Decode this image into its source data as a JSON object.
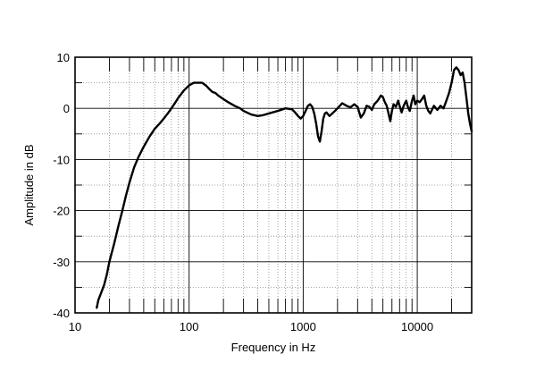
{
  "chart_data": {
    "type": "line",
    "title": "",
    "xlabel": "Frequency in Hz",
    "ylabel": "Amplitude in dB",
    "x_scale": "log",
    "xlim": [
      10,
      30000
    ],
    "ylim": [
      -40,
      10
    ],
    "x_ticks": [
      10,
      100,
      1000,
      10000
    ],
    "x_tick_labels": [
      "10",
      "100",
      "1000",
      "10000"
    ],
    "y_ticks": [
      10,
      0,
      -10,
      -20,
      -30,
      -40
    ],
    "y_tick_labels": [
      "10",
      "0",
      "-10",
      "-20",
      "-30",
      "-40"
    ],
    "grid": true,
    "legend": "none",
    "line_color": "#000000",
    "series": [
      {
        "x": [
          15.5,
          16,
          17,
          18,
          19,
          20,
          22,
          24,
          26,
          28,
          30,
          33,
          36,
          40,
          45,
          50,
          55,
          60,
          65,
          70,
          75,
          80,
          90,
          100,
          110,
          120,
          130,
          140,
          150,
          160,
          170,
          180,
          200,
          220,
          250,
          280,
          300,
          350,
          400,
          450,
          500,
          600,
          700,
          800,
          850,
          900,
          950,
          1000,
          1050,
          1100,
          1150,
          1200,
          1250,
          1300,
          1350,
          1400,
          1450,
          1500,
          1550,
          1600,
          1700,
          1800,
          1900,
          2000,
          2200,
          2400,
          2600,
          2800,
          3000,
          3200,
          3400,
          3600,
          3800,
          4000,
          4200,
          4500,
          4800,
          5000,
          5200,
          5400,
          5600,
          5800,
          6000,
          6200,
          6500,
          6800,
          7000,
          7300,
          7600,
          8000,
          8300,
          8600,
          9000,
          9300,
          9600,
          10000,
          10500,
          11000,
          11500,
          12000,
          12500,
          13000,
          14000,
          15000,
          16000,
          17000,
          18000,
          19000,
          20000,
          21000,
          22000,
          23000,
          24000,
          25000,
          26000,
          27000,
          28000,
          29000,
          30000
        ],
        "y": [
          -39,
          -37.5,
          -36,
          -34.5,
          -32.5,
          -30,
          -26.5,
          -23,
          -20,
          -17,
          -14.5,
          -11.5,
          -9.5,
          -7.5,
          -5.5,
          -4,
          -3,
          -2,
          -1,
          0,
          1,
          2,
          3.5,
          4.5,
          5,
          5,
          5,
          4.5,
          3.8,
          3.2,
          3,
          2.5,
          1.8,
          1.2,
          0.5,
          0,
          -0.5,
          -1.2,
          -1.5,
          -1.3,
          -1,
          -0.5,
          0,
          -0.2,
          -0.8,
          -1.5,
          -2,
          -1.5,
          -0.5,
          0.5,
          0.8,
          0.3,
          -1,
          -3,
          -5.5,
          -6.5,
          -4.5,
          -2,
          -1,
          -0.8,
          -1.5,
          -1,
          -0.5,
          0,
          1,
          0.5,
          0.2,
          0.8,
          0.3,
          -1.8,
          -1,
          0.5,
          0.3,
          -0.3,
          0.8,
          1.5,
          2.5,
          2.2,
          1.2,
          0.5,
          -1,
          -2.5,
          -0.5,
          0.8,
          0.3,
          1.5,
          0.5,
          -0.8,
          0.5,
          1.5,
          0.2,
          -0.5,
          1.5,
          2.5,
          0.8,
          1.5,
          1.2,
          1.8,
          2.5,
          0.5,
          -0.5,
          -1,
          0.5,
          -0.3,
          0.5,
          0,
          1.5,
          3,
          5,
          7.5,
          8,
          7.5,
          6.5,
          7,
          5,
          2,
          -1,
          -3,
          -4.5
        ]
      }
    ]
  }
}
